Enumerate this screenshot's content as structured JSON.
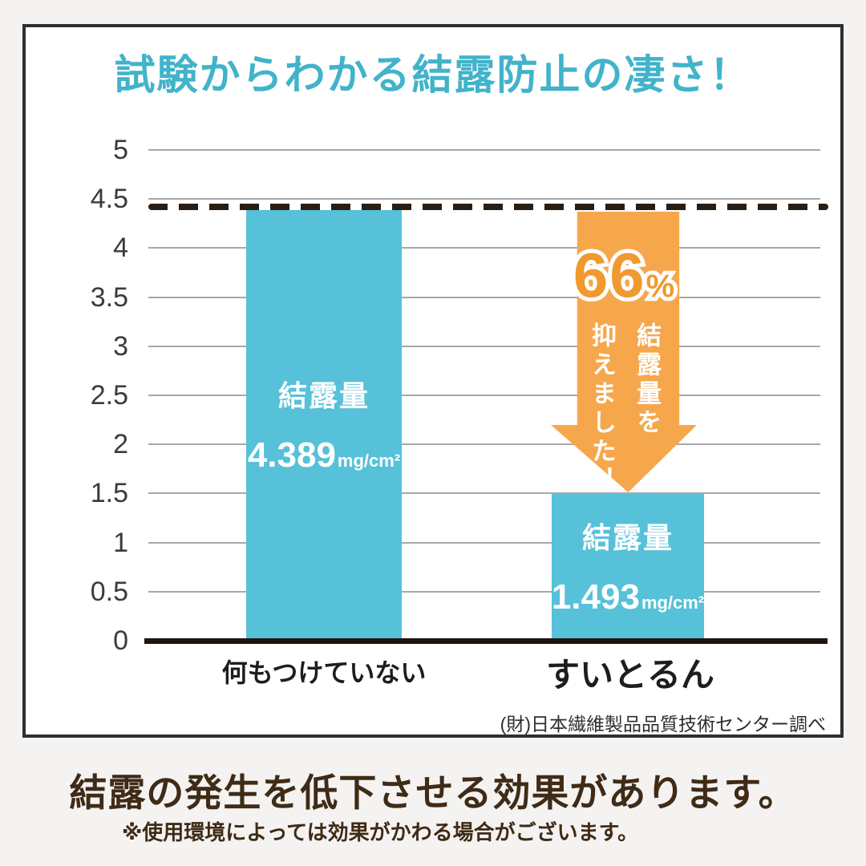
{
  "title": {
    "text": "試験からわかる結露防止の凄さ！",
    "color": "#41b3ca"
  },
  "chart_data": {
    "type": "bar",
    "categories": [
      "何もつけていない",
      "すいとるん"
    ],
    "values": [
      4.389,
      1.493
    ],
    "values_text": [
      "4.389",
      "1.493"
    ],
    "series_label": "結露量",
    "unit": "mg/cm²",
    "ylim": [
      0,
      5
    ],
    "yticks": [
      "5",
      "4.5",
      "4",
      "3.5",
      "3",
      "2.5",
      "2",
      "1.5",
      "1",
      "0.5",
      "0"
    ],
    "ytick_values": [
      5,
      4.5,
      4,
      3.5,
      3,
      2.5,
      2,
      1.5,
      1,
      0.5,
      0
    ],
    "grid": true,
    "legend": false,
    "reference_line": 4.389,
    "bar_color": "#56c1d8",
    "annotation": {
      "number": "66",
      "percent_sign": "%",
      "caption_columns": [
        "結露量を",
        "抑えました！"
      ],
      "caption_reading": "結露量を抑えました！",
      "arrow_color": "#f6a74c",
      "number_color": "#f0992f"
    },
    "source": "(財)日本繊維製品品質技術センター調べ"
  },
  "footer": {
    "headline": "結露の発生を低下させる効果があります。",
    "note": "※使用環境によっては効果がかわる場合がございます。",
    "text_color": "#3f2b16"
  }
}
